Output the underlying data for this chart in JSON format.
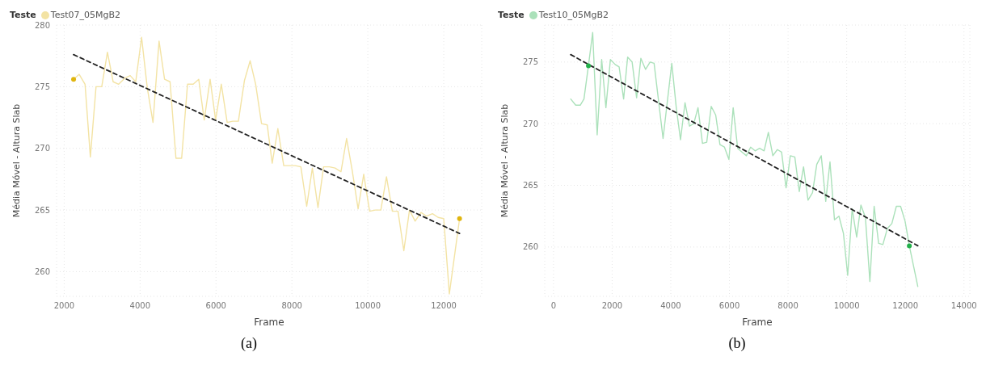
{
  "chart_data": [
    {
      "type": "line",
      "legend_title": "Teste",
      "legend": "top left",
      "xlabel": "Frame",
      "ylabel": "Média Móvel - Altura Slab",
      "xlim": [
        1800,
        13000
      ],
      "xticks": [
        2000,
        4000,
        6000,
        8000,
        10000,
        12000
      ],
      "ylim": [
        258,
        280
      ],
      "yticks": [
        260,
        265,
        270,
        275,
        280
      ],
      "grid": true,
      "marker": "none",
      "annotations": [
        "(a)"
      ],
      "series": [
        {
          "name": "Test07_05MgB2",
          "color": "#f3e3a4",
          "x": [
            2248,
            2396,
            2550,
            2690,
            2840,
            2990,
            3140,
            3290,
            3435,
            3600,
            3740,
            3885,
            4040,
            4190,
            4340,
            4500,
            4645,
            4790,
            4945,
            5095,
            5250,
            5400,
            5545,
            5690,
            5845,
            5990,
            6140,
            6295,
            6440,
            6590,
            6750,
            6900,
            7045,
            7200,
            7350,
            7481,
            7630,
            7785,
            7933,
            8088,
            8236,
            8390,
            8539,
            8687,
            8835,
            8990,
            9138,
            9293,
            9441,
            9589,
            9744,
            9892,
            10047,
            10195,
            10343,
            10492,
            10646,
            10795,
            10949,
            11098,
            11246,
            11401,
            11549,
            11704,
            11852,
            12000,
            12148,
            12417
          ],
          "values": [
            275.6,
            276.0,
            275.2,
            269.3,
            275.0,
            275.0,
            277.8,
            275.4,
            275.2,
            275.7,
            275.9,
            275.4,
            279.0,
            274.9,
            272.1,
            278.7,
            275.6,
            275.4,
            269.2,
            269.2,
            275.2,
            275.2,
            275.6,
            272.3,
            275.6,
            272.3,
            275.2,
            272.1,
            272.2,
            272.2,
            275.5,
            277.1,
            275.2,
            272.0,
            271.9,
            268.8,
            271.6,
            268.6,
            268.6,
            268.6,
            268.5,
            265.3,
            268.4,
            265.2,
            268.5,
            268.5,
            268.4,
            268.1,
            270.8,
            268.2,
            265.1,
            267.9,
            264.9,
            265.0,
            265.0,
            267.7,
            264.9,
            264.9,
            261.7,
            265.0,
            264.1,
            264.8,
            264.5,
            264.7,
            264.4,
            264.3,
            258.2,
            264.3
          ]
        },
        {
          "type": "scatter",
          "marker": "circle",
          "color": "#e0b50f",
          "x": [
            2248,
            12417
          ],
          "values": [
            275.6,
            264.3
          ]
        },
        {
          "type": "line",
          "line_style": "dashed",
          "color": "#222222",
          "x": [
            2248,
            12417
          ],
          "values": [
            277.6,
            263.1
          ]
        }
      ]
    },
    {
      "type": "line",
      "legend_title": "Teste",
      "legend": "top left",
      "xlabel": "Frame",
      "ylabel": "Média Móvel - Altura Slab",
      "xlim": [
        -300,
        14200
      ],
      "xticks": [
        0,
        2000,
        4000,
        6000,
        8000,
        10000,
        12000,
        14000
      ],
      "ylim": [
        256,
        278
      ],
      "yticks": [
        260,
        265,
        270,
        275
      ],
      "grid": true,
      "marker": "none",
      "annotations": [
        "(b)"
      ],
      "series": [
        {
          "name": "Test10_05MgB2",
          "color": "#abe1ba",
          "x": [
            587,
            757,
            911,
            1038,
            1191,
            1336,
            1489,
            1643,
            1787,
            1940,
            2102,
            2238,
            2391,
            2528,
            2681,
            2834,
            2979,
            3140,
            3294,
            3430,
            3736,
            4034,
            4187,
            4332,
            4485,
            4638,
            4783,
            4928,
            5081,
            5226,
            5379,
            5532,
            5677,
            5830,
            5983,
            6128,
            6281,
            6426,
            6579,
            6723,
            6877,
            7030,
            7183,
            7328,
            7481,
            7634,
            7779,
            7932,
            8077,
            8230,
            8383,
            8528,
            8681,
            8834,
            8979,
            9132,
            9285,
            9430,
            9583,
            9736,
            9889,
            10034,
            10187,
            10340,
            10485,
            10638,
            10791,
            10936,
            11089,
            11234,
            11387,
            11540,
            11694,
            11838,
            11991,
            12136,
            12426
          ],
          "values": [
            272.0,
            271.5,
            271.5,
            272.0,
            274.7,
            277.4,
            269.1,
            275.2,
            271.3,
            275.2,
            274.8,
            274.6,
            272.0,
            275.4,
            275.0,
            272.1,
            275.3,
            274.4,
            275.0,
            274.9,
            268.8,
            274.9,
            271.3,
            268.7,
            271.7,
            269.8,
            270.0,
            271.3,
            268.4,
            268.5,
            271.4,
            270.7,
            268.3,
            268.1,
            267.1,
            271.3,
            268.0,
            267.7,
            267.4,
            268.1,
            267.8,
            268.0,
            267.8,
            269.3,
            267.4,
            267.9,
            267.7,
            264.8,
            267.4,
            267.3,
            264.5,
            266.5,
            263.8,
            264.4,
            266.7,
            267.4,
            263.7,
            266.9,
            262.2,
            262.5,
            261.1,
            257.7,
            263.1,
            260.8,
            263.4,
            262.4,
            257.2,
            263.3,
            260.3,
            260.2,
            261.5,
            261.9,
            263.3,
            263.3,
            262.1,
            260.1,
            256.8
          ]
        },
        {
          "type": "scatter",
          "marker": "circle",
          "color": "#22b04a",
          "x": [
            1191,
            12136
          ],
          "values": [
            274.7,
            260.1
          ]
        },
        {
          "type": "line",
          "line_style": "dashed",
          "color": "#222222",
          "x": [
            587,
            12426
          ],
          "values": [
            275.6,
            260.1
          ]
        }
      ]
    }
  ]
}
